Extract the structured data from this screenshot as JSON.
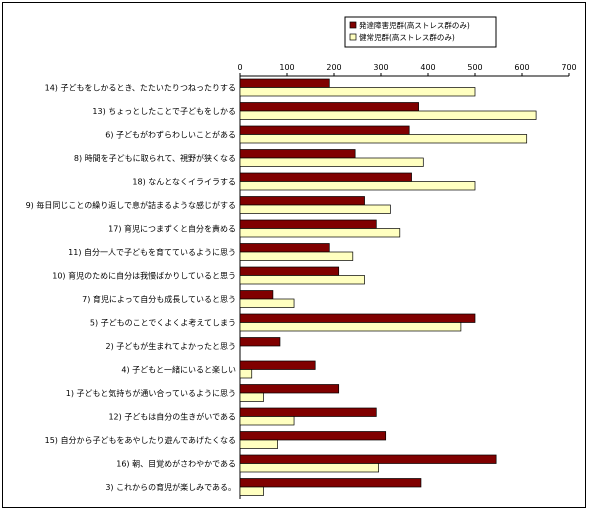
{
  "chart_data": {
    "type": "bar",
    "orientation": "horizontal",
    "xlim": [
      0,
      700
    ],
    "x_ticks": [
      "0",
      "100",
      "200",
      "300",
      "400",
      "500",
      "600",
      "700"
    ],
    "grid": false,
    "legend_position": "top-right",
    "categories": [
      "14) 子どもをしかるとき、たたいたりつねったりする",
      "13) ちょっとしたことで子どもをしかる",
      "6) 子どもがわずらわしいことがある",
      "8) 時間を子どもに取られて、視野が狭くなる",
      "18) なんとなくイライラする",
      "9) 毎日同じことの繰り返しで息が詰まるような感じがする",
      "17) 育児につまずくと自分を責める",
      "11) 自分一人で子どもを育てているように思う",
      "10) 育児のために自分は我慢ばかりしていると思う",
      "7) 育児によって自分も成長していると思う",
      "5) 子どものことでくよくよ考えてしまう",
      "2) 子どもが生まれてよかったと思う",
      "4) 子どもと一緒にいると楽しい",
      "1) 子どもと気持ちが通い合っているように思う",
      "12) 子どもは自分の生きがいである",
      "15) 自分から子どもをあやしたり遊んであげたくなる",
      "16) 朝、目覚めがさわやかである",
      "3) これからの育児が楽しみである。"
    ],
    "series": [
      {
        "name": "発達障害児群(高ストレス群のみ)",
        "color": "#800000",
        "values": [
          190,
          380,
          360,
          245,
          365,
          265,
          290,
          190,
          210,
          70,
          500,
          85,
          160,
          210,
          290,
          310,
          545,
          385
        ]
      },
      {
        "name": "健常児群(高ストレス群のみ)",
        "color": "#ffffc0",
        "values": [
          500,
          630,
          610,
          390,
          500,
          320,
          340,
          240,
          265,
          115,
          470,
          0,
          25,
          50,
          115,
          80,
          295,
          50
        ]
      }
    ]
  }
}
